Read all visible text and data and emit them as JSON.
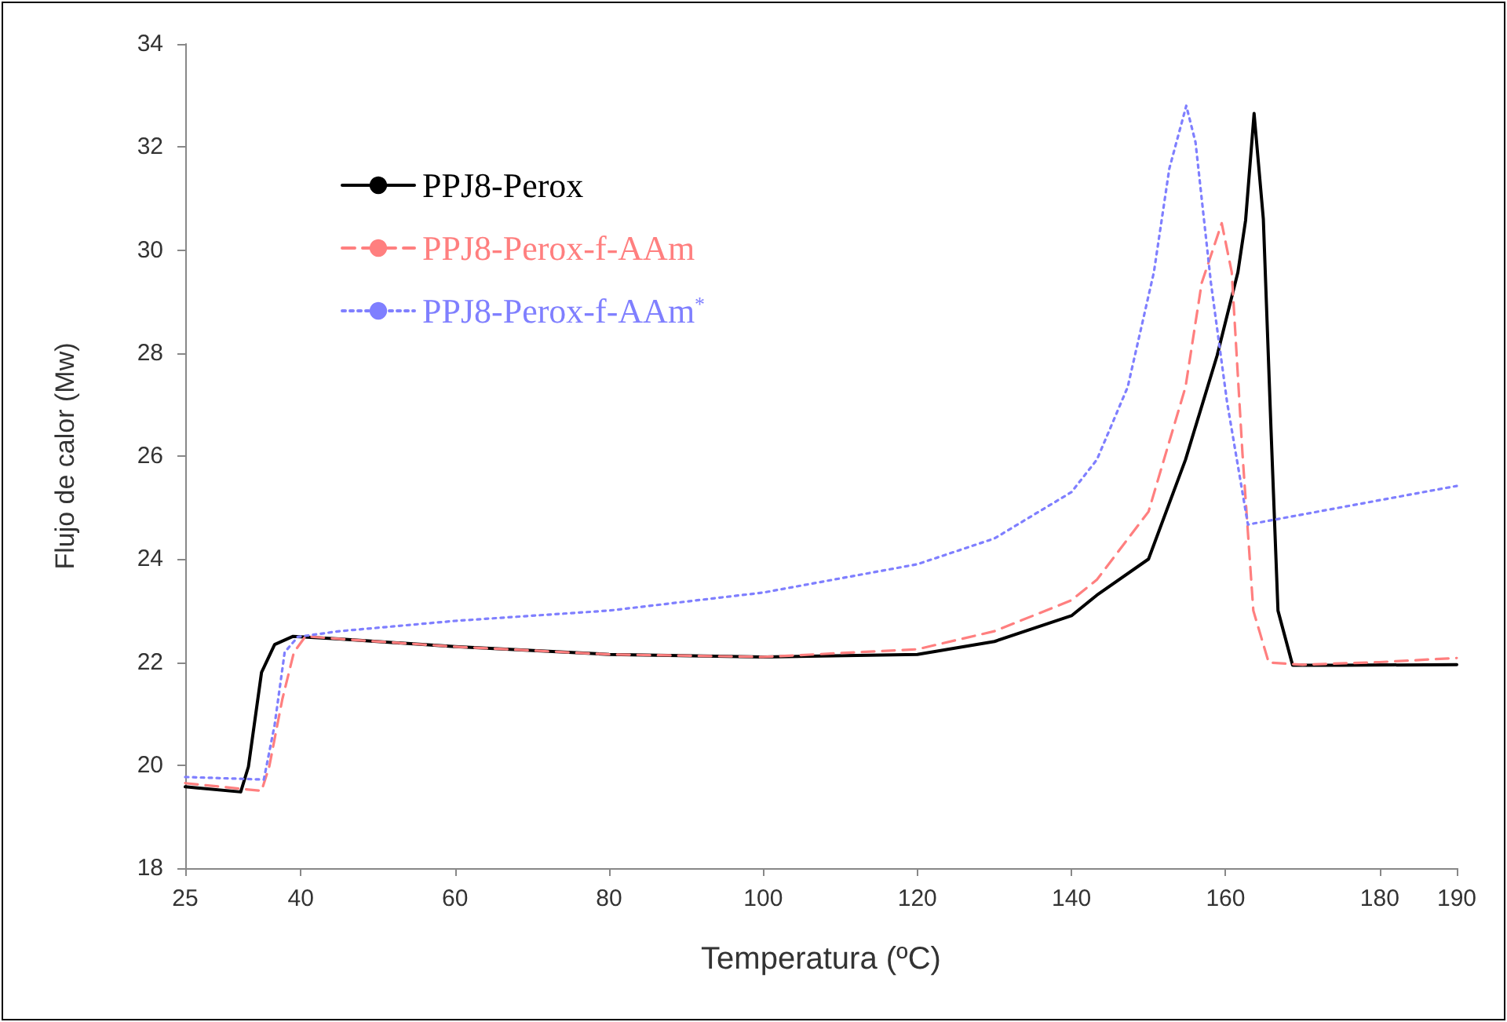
{
  "chart_data": {
    "type": "line",
    "xlabel": "Temperatura (ºC)",
    "ylabel": "Flujo de calor (Mw)",
    "xlim": [
      25,
      190
    ],
    "xticks": [
      25,
      40,
      60,
      80,
      100,
      120,
      140,
      160,
      180,
      190
    ],
    "ylim": [
      18,
      34
    ],
    "yticks": [
      18,
      20,
      22,
      24,
      26,
      28,
      30,
      32,
      34
    ],
    "grid": false,
    "legend": "top left",
    "marker": "none",
    "series": [
      {
        "name": "PPJ8-Perox",
        "color": "#000000",
        "line_style": "solid",
        "x": [
          25,
          32.2,
          33.2,
          34.9,
          36.6,
          39,
          45,
          60,
          80,
          100,
          120,
          130,
          140,
          143.3,
          150,
          154.8,
          158.9,
          161.6,
          162.6,
          163.7,
          164.9,
          165.9,
          166.8,
          168.7,
          175,
          190
        ],
        "values": [
          19.58,
          19.48,
          19.97,
          21.8,
          22.34,
          22.5,
          22.45,
          22.3,
          22.15,
          22.1,
          22.15,
          22.4,
          22.9,
          23.3,
          24.0,
          25.93,
          27.95,
          29.57,
          30.58,
          32.65,
          30.6,
          26.5,
          23.0,
          21.94,
          21.94,
          21.95
        ]
      },
      {
        "name": "PPJ8-Perox-f-AAm",
        "color": "#ff7f7f",
        "line_style": "dashed",
        "x": [
          25,
          34.9,
          35.9,
          37.6,
          39.1,
          40.6,
          45,
          60,
          80,
          100,
          120,
          130,
          140,
          143.3,
          150,
          154.8,
          156.9,
          159.5,
          160.8,
          162.2,
          163.6,
          165.6,
          170,
          180,
          190
        ],
        "values": [
          19.65,
          19.5,
          19.97,
          21.28,
          22.19,
          22.5,
          22.45,
          22.3,
          22.15,
          22.1,
          22.25,
          22.6,
          23.2,
          23.6,
          24.92,
          27.34,
          29.36,
          30.52,
          29.57,
          26.03,
          23.0,
          21.99,
          21.95,
          22.0,
          22.08
        ]
      },
      {
        "name": "PPJ8-Perox-f-AAm$^{*}$",
        "color": "#7f7fff",
        "line_style": "dotted",
        "x": [
          25,
          35.2,
          36.6,
          37.9,
          39.6,
          45,
          60,
          80,
          100,
          120,
          130,
          140,
          143.3,
          147.3,
          150.7,
          152.7,
          154.9,
          156.1,
          158.1,
          160.2,
          162.9,
          190
        ],
        "values": [
          19.77,
          19.72,
          20.78,
          22.19,
          22.49,
          22.6,
          22.8,
          23.0,
          23.35,
          23.9,
          24.4,
          25.3,
          25.93,
          27.34,
          29.57,
          31.58,
          32.8,
          32.09,
          29.36,
          27.04,
          24.67,
          25.42
        ]
      }
    ]
  }
}
